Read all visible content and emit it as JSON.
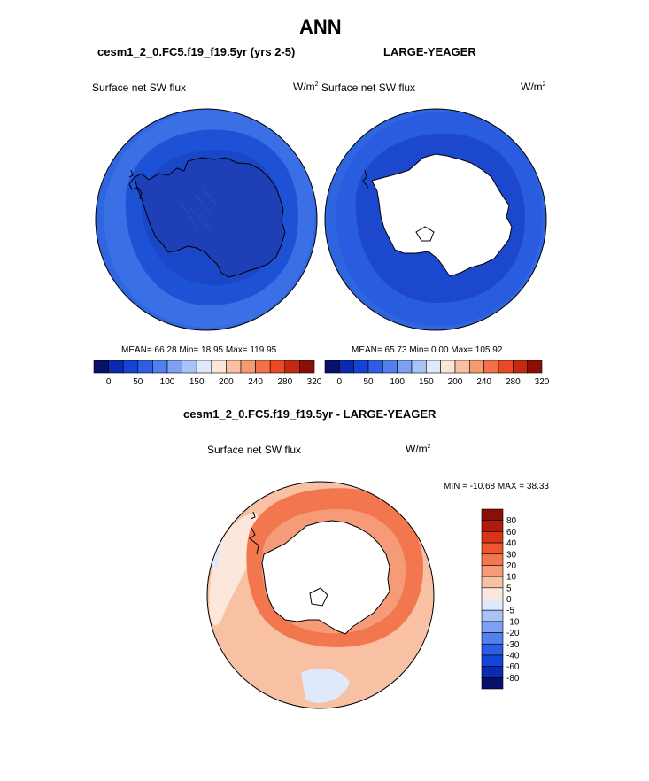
{
  "figure": {
    "title": "ANN",
    "left_case": "cesm1_2_0.FC5.f19_f19.5yr (yrs 2-5)",
    "right_case": "LARGE-YEAGER",
    "diff_title": "cesm1_2_0.FC5.f19_f19.5yr - LARGE-YEAGER"
  },
  "panels": {
    "left": {
      "variable": "Surface net SW flux",
      "units_base": "W/m",
      "units_exp": "2",
      "stats": "MEAN=  66.28  Min=  18.95  Max= 119.95"
    },
    "right": {
      "variable": "Surface net SW flux",
      "units_base": "W/m",
      "units_exp": "2",
      "stats": "MEAN=  65.73  Min=   0.00  Max= 105.92"
    },
    "diff": {
      "variable": "Surface net SW flux",
      "units_base": "W/m",
      "units_exp": "2",
      "stats": "MIN = -10.68 MAX =  38.33"
    }
  },
  "colorbars": {
    "abs_tick_labels": [
      "0",
      "50",
      "100",
      "150",
      "200",
      "240",
      "280",
      "320"
    ],
    "abs_colors": [
      "#08106b",
      "#0c2ab0",
      "#1443d8",
      "#2d5fe6",
      "#5280ee",
      "#7da0f2",
      "#a9c3f6",
      "#dfe9fb",
      "#fce6da",
      "#f9c0a3",
      "#f69a72",
      "#f27148",
      "#e84a26",
      "#c42a12",
      "#8c0e06"
    ],
    "diff_labels": [
      "80",
      "60",
      "40",
      "30",
      "20",
      "10",
      "5",
      "0",
      "-5",
      "-10",
      "-20",
      "-30",
      "-40",
      "-60",
      "-80"
    ],
    "diff_colors": [
      "#8c0e06",
      "#b11b0c",
      "#d9331a",
      "#f0552d",
      "#f2774f",
      "#f59b77",
      "#f8c1a4",
      "#fde6da",
      "#dfe9fb",
      "#a9c3f6",
      "#7da0f2",
      "#5280ee",
      "#2d5fe6",
      "#1443d8",
      "#0c2ab0",
      "#08106b"
    ]
  },
  "chart_data": [
    {
      "type": "heatmap",
      "title": "cesm1_2_0.FC5.f19_f19.5yr (yrs 2-5)",
      "projection": "polar stereographic, south pole",
      "variable": "Surface net SW flux",
      "units": "W/m2",
      "mean": 66.28,
      "min": 18.95,
      "max": 119.95,
      "colorbar_levels": [
        0,
        50,
        100,
        150,
        200,
        240,
        280,
        320
      ]
    },
    {
      "type": "heatmap",
      "title": "LARGE-YEAGER",
      "projection": "polar stereographic, south pole",
      "variable": "Surface net SW flux",
      "units": "W/m2",
      "mean": 65.73,
      "min": 0.0,
      "max": 105.92,
      "colorbar_levels": [
        0,
        50,
        100,
        150,
        200,
        240,
        280,
        320
      ]
    },
    {
      "type": "heatmap",
      "title": "cesm1_2_0.FC5.f19_f19.5yr - LARGE-YEAGER",
      "projection": "polar stereographic, south pole",
      "variable": "Surface net SW flux",
      "units": "W/m2",
      "min": -10.68,
      "max": 38.33,
      "colorbar_levels": [
        -80,
        -60,
        -40,
        -30,
        -20,
        -10,
        -5,
        0,
        5,
        10,
        20,
        30,
        40,
        60,
        80
      ]
    }
  ]
}
